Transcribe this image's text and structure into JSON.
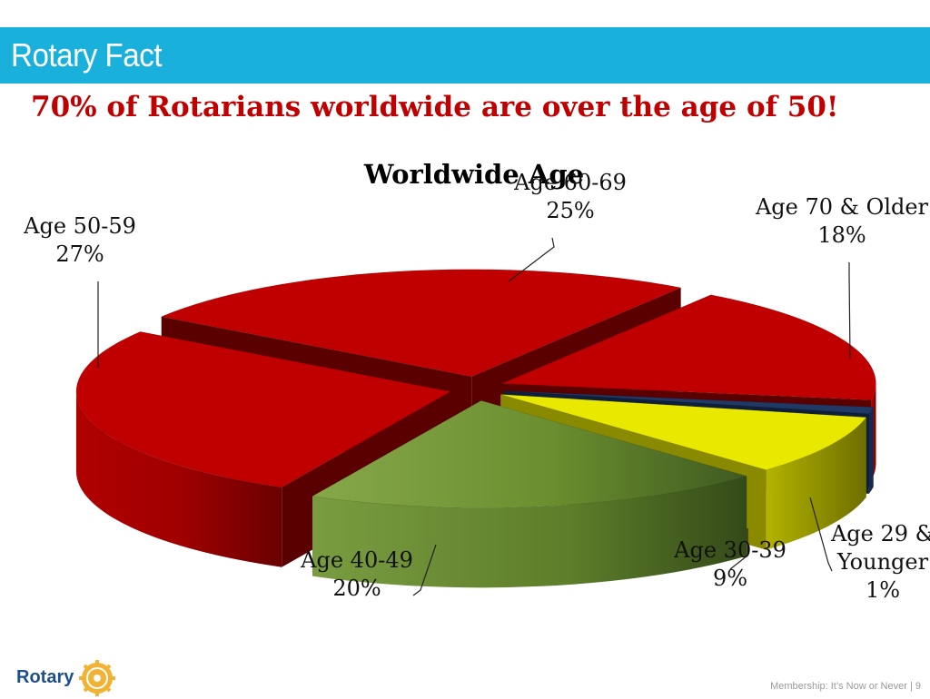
{
  "slide": {
    "title": "Rotary Fact",
    "headline": "70% of Rotarians worldwide are over the age of 50!",
    "footer": "Membership: It’s Now or Never  |  9",
    "logo_text": "Rotary",
    "logo_icon": "rotary-wheel-icon",
    "header_color": "#1ab0dc",
    "headline_color": "#c00000"
  },
  "chart_data": {
    "type": "pie",
    "style": "3d-exploded",
    "title": "Worldwide Age",
    "slices": [
      {
        "name": "Age 60-69",
        "label_line1": "Age 60-69",
        "label_line2": "25%",
        "value": 25,
        "color": "#c00000"
      },
      {
        "name": "Age 70 & Older",
        "label_line1": "Age 70 & Older",
        "label_line2": "18%",
        "value": 18,
        "color": "#c00000"
      },
      {
        "name": "Age 29 & Younger",
        "label_line1": "Age 29 &",
        "label_line2": "Younger",
        "label_line3": "1%",
        "value": 1,
        "color": "#1f3864"
      },
      {
        "name": "Age 30-39",
        "label_line1": "Age 30-39",
        "label_line2": "9%",
        "value": 9,
        "color": "#e8e800"
      },
      {
        "name": "Age 40-49",
        "label_line1": "Age 40-49",
        "label_line2": "20%",
        "value": 20,
        "color": "#6b8e2f"
      },
      {
        "name": "Age 50-59",
        "label_line1": "Age 50-59",
        "label_line2": "27%",
        "value": 27,
        "color": "#c00000"
      }
    ]
  }
}
